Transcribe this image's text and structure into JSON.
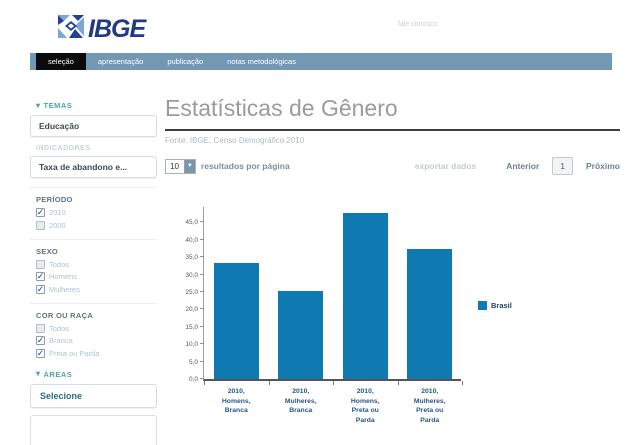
{
  "header": {
    "logo_text": "IBGE",
    "contact_link": "fale conosco"
  },
  "nav": {
    "background_color": "#7298b3",
    "items": [
      {
        "label": "seleção",
        "active": true
      },
      {
        "label": "apresentação",
        "active": false
      },
      {
        "label": "publicação",
        "active": false
      },
      {
        "label": "notas metodológicas",
        "active": false
      }
    ]
  },
  "sidebar": {
    "temas": {
      "label": "TEMAS",
      "value": "Educação"
    },
    "indicadores": {
      "label": "INDICADORES",
      "value": "Taxa de abandono e..."
    },
    "filters": [
      {
        "label": "PERÍODO",
        "options": [
          {
            "label": "2010",
            "checked": true
          },
          {
            "label": "2000",
            "checked": false
          }
        ]
      },
      {
        "label": "SEXO",
        "options": [
          {
            "label": "Todos",
            "checked": false
          },
          {
            "label": "Homens",
            "checked": true
          },
          {
            "label": "Mulheres",
            "checked": true
          }
        ]
      },
      {
        "label": "COR OU RAÇA",
        "options": [
          {
            "label": "Todos",
            "checked": false
          },
          {
            "label": "Branca",
            "checked": true
          },
          {
            "label": "Preta ou Parda",
            "checked": true
          }
        ]
      }
    ],
    "areas": {
      "label": "ÁREAS",
      "value": "Selecione"
    }
  },
  "main": {
    "title": "Estatísticas de Gênero",
    "source": "Fonte: IBGE, Censo Demográfico 2010",
    "results_per_page": {
      "value": "10",
      "label": "resultados por página"
    },
    "export_label": "exportar dados",
    "pagination": {
      "prev": "Anterior",
      "page": "1",
      "next": "Próximo"
    }
  },
  "chart_data": {
    "type": "bar",
    "title": "",
    "xlabel": "",
    "ylabel": "",
    "categories": [
      "2010, Homens, Branca",
      "2010, Mulheres, Branca",
      "2010, Homens, Preta ou Parda",
      "2010, Mulheres, Preta ou Parda"
    ],
    "category_lines": [
      [
        "2010,",
        "Homens,",
        "Branca"
      ],
      [
        "2010,",
        "Mulheres,",
        "Branca"
      ],
      [
        "2010,",
        "Homens,",
        "Preta ou",
        "Parda"
      ],
      [
        "2010,",
        "Mulheres,",
        "Preta ou",
        "Parda"
      ]
    ],
    "series": [
      {
        "name": "Brasil",
        "values": [
          33.4,
          25.3,
          47.6,
          37.3
        ]
      }
    ],
    "ylim": [
      0,
      50
    ],
    "ytick_values": [
      0,
      5,
      10,
      15,
      20,
      25,
      30,
      35,
      40,
      45
    ],
    "ytick_labels": [
      "0,0",
      "5,0",
      "10,0",
      "15,0",
      "20,0",
      "25,0",
      "30,0",
      "35,0",
      "40,0",
      "45,0"
    ],
    "grid": false,
    "legend_position": "right",
    "bar_color": "#0f7ab1"
  }
}
